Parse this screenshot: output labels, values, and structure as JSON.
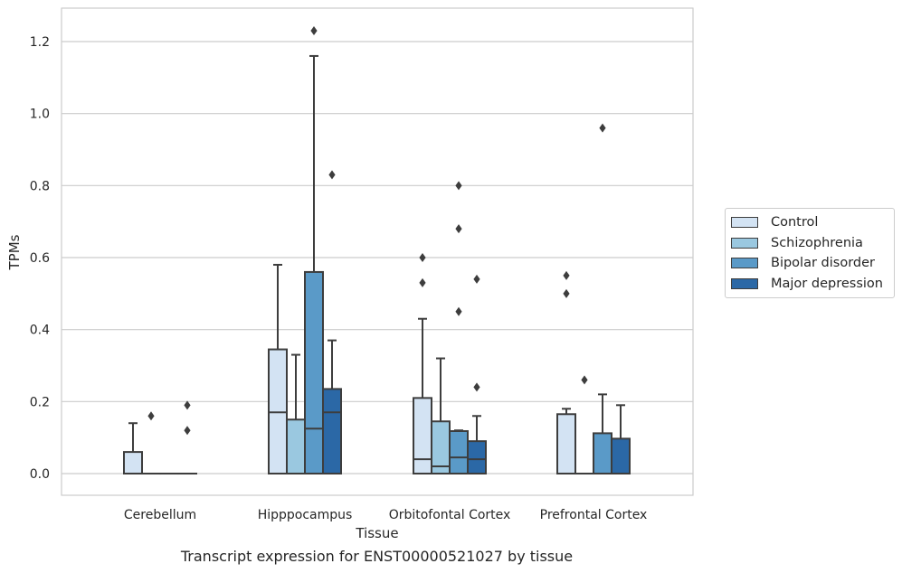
{
  "chart_data": {
    "type": "box",
    "xlabel": "Tissue",
    "ylabel": "TPMs",
    "ylim": [
      -0.06,
      1.29
    ],
    "yticks": [
      0.0,
      0.2,
      0.4,
      0.6,
      0.8,
      1.0,
      1.2
    ],
    "ytick_labels": [
      "0.0",
      "0.2",
      "0.4",
      "0.6",
      "0.8",
      "1.0",
      "1.2"
    ],
    "grid": true,
    "legend_position": "right",
    "categories": [
      "Cerebellum",
      "Hipppocampus",
      "Orbitofontal Cortex",
      "Prefrontal Cortex"
    ],
    "series": [
      {
        "name": "Control",
        "color": "#d3e3f3",
        "boxes": [
          {
            "min": 0.0,
            "q1": 0.0,
            "median": 0.0,
            "q3": 0.06,
            "max": 0.14,
            "outliers": []
          },
          {
            "min": 0.0,
            "q1": 0.0,
            "median": 0.17,
            "q3": 0.345,
            "max": 0.58,
            "outliers": []
          },
          {
            "min": 0.0,
            "q1": 0.0,
            "median": 0.04,
            "q3": 0.21,
            "max": 0.43,
            "outliers": [
              0.53,
              0.6
            ]
          },
          {
            "min": 0.0,
            "q1": 0.0,
            "median": 0.0,
            "q3": 0.165,
            "max": 0.18,
            "outliers": [
              0.5,
              0.55
            ]
          }
        ]
      },
      {
        "name": "Schizophrenia",
        "color": "#9ac8e0",
        "boxes": [
          {
            "min": 0.0,
            "q1": 0.0,
            "median": 0.0,
            "q3": 0.0,
            "max": 0.0,
            "outliers": [
              0.16
            ]
          },
          {
            "min": 0.0,
            "q1": 0.0,
            "median": 0.0,
            "q3": 0.15,
            "max": 0.33,
            "outliers": []
          },
          {
            "min": 0.0,
            "q1": 0.0,
            "median": 0.02,
            "q3": 0.145,
            "max": 0.32,
            "outliers": []
          },
          {
            "min": 0.0,
            "q1": 0.0,
            "median": 0.0,
            "q3": 0.0,
            "max": 0.0,
            "outliers": [
              0.26
            ]
          }
        ]
      },
      {
        "name": "Bipolar disorder",
        "color": "#5a9ac8",
        "boxes": [
          {
            "min": 0.0,
            "q1": 0.0,
            "median": 0.0,
            "q3": 0.0,
            "max": 0.0,
            "outliers": []
          },
          {
            "min": 0.0,
            "q1": 0.0,
            "median": 0.125,
            "q3": 0.56,
            "max": 1.16,
            "outliers": [
              1.23
            ]
          },
          {
            "min": 0.0,
            "q1": 0.0,
            "median": 0.045,
            "q3": 0.118,
            "max": 0.12,
            "outliers": [
              0.45,
              0.68,
              0.8
            ]
          },
          {
            "min": 0.0,
            "q1": 0.0,
            "median": 0.0,
            "q3": 0.112,
            "max": 0.22,
            "outliers": [
              0.96
            ]
          }
        ]
      },
      {
        "name": "Major depression",
        "color": "#2b68a6",
        "boxes": [
          {
            "min": 0.0,
            "q1": 0.0,
            "median": 0.0,
            "q3": 0.0,
            "max": 0.0,
            "outliers": [
              0.12,
              0.19
            ]
          },
          {
            "min": 0.0,
            "q1": 0.0,
            "median": 0.17,
            "q3": 0.235,
            "max": 0.37,
            "outliers": [
              0.83
            ]
          },
          {
            "min": 0.0,
            "q1": 0.0,
            "median": 0.04,
            "q3": 0.09,
            "max": 0.16,
            "outliers": [
              0.24,
              0.54
            ]
          },
          {
            "min": 0.0,
            "q1": 0.0,
            "median": 0.0,
            "q3": 0.097,
            "max": 0.19,
            "outliers": []
          }
        ]
      }
    ],
    "caption": "Transcript expression for ENST00000521027 by tissue"
  }
}
